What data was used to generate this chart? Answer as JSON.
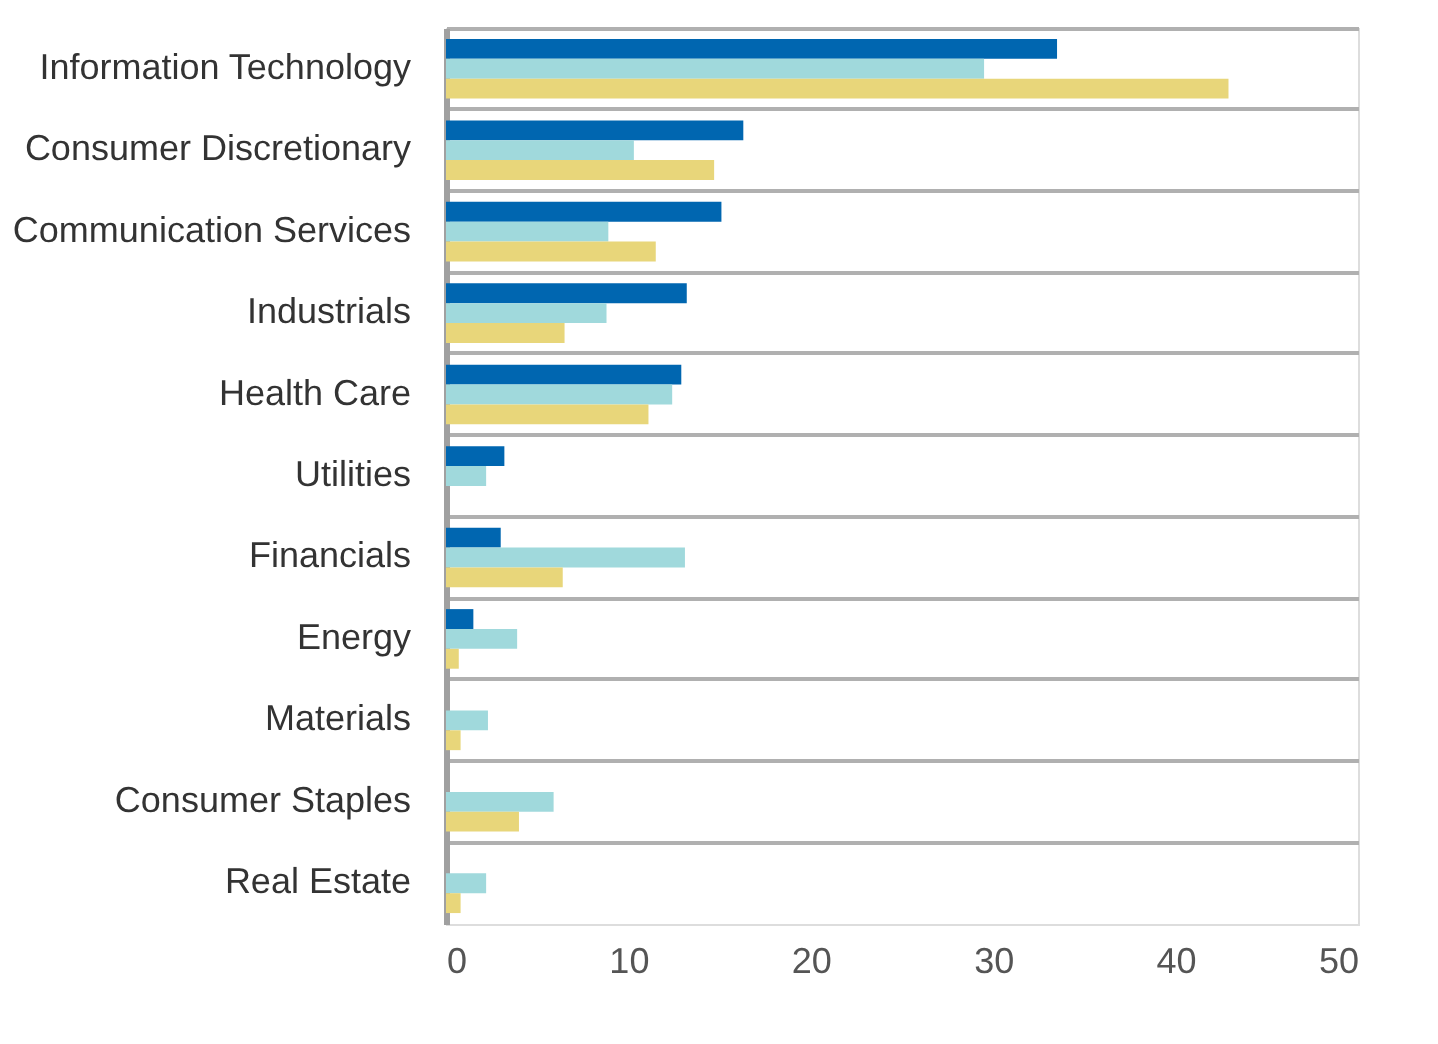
{
  "chart_data": {
    "type": "bar",
    "orientation": "horizontal",
    "categories": [
      "Information Technology",
      "Consumer Discretionary",
      "Communication Services",
      "Industrials",
      "Health Care",
      "Utilities",
      "Financials",
      "Energy",
      "Materials",
      "Consumer Staples",
      "Real Estate"
    ],
    "series": [
      {
        "color": "#0066b0",
        "values": [
          33.5,
          16.3,
          15.1,
          13.2,
          12.9,
          3.2,
          3.0,
          1.5,
          null,
          null,
          null
        ]
      },
      {
        "color": "#a0d9dc",
        "values": [
          29.5,
          10.3,
          8.9,
          8.8,
          12.4,
          2.2,
          13.1,
          3.9,
          2.3,
          5.9,
          2.2
        ]
      },
      {
        "color": "#e8d67a",
        "values": [
          42.9,
          14.7,
          11.5,
          6.5,
          11.1,
          null,
          6.4,
          0.7,
          0.8,
          4.0,
          0.8
        ]
      }
    ],
    "xlim": [
      0,
      50
    ],
    "xticks": [
      0,
      10,
      20,
      30,
      40,
      50
    ],
    "grid": "y",
    "legend": false
  }
}
